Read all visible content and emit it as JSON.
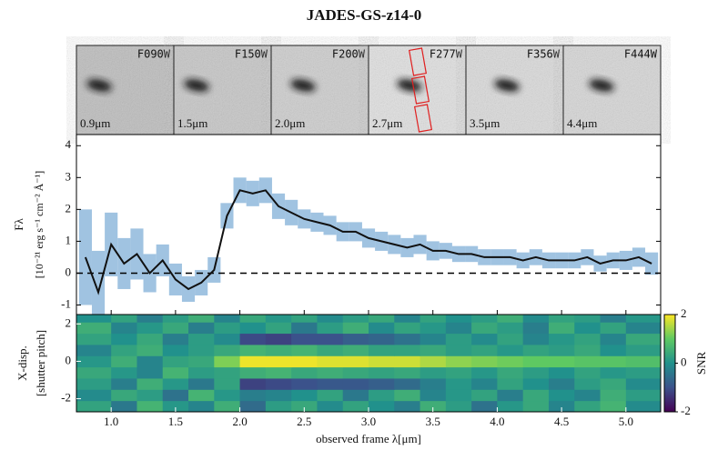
{
  "title": "JADES-GS-z14-0",
  "chart_data": [
    {
      "type": "cutouts",
      "panels": [
        {
          "filter": "F090W",
          "wavelength": "0.9μm"
        },
        {
          "filter": "F150W",
          "wavelength": "1.5μm"
        },
        {
          "filter": "F200W",
          "wavelength": "2.0μm"
        },
        {
          "filter": "F277W",
          "wavelength": "2.7μm"
        },
        {
          "filter": "F356W",
          "wavelength": "3.5μm"
        },
        {
          "filter": "F444W",
          "wavelength": "4.4μm"
        }
      ]
    },
    {
      "type": "line",
      "y_label": [
        "Fλ",
        "[10⁻²¹ erg s⁻¹ cm⁻² Å⁻¹]"
      ],
      "x": [
        0.8,
        0.9,
        1.0,
        1.1,
        1.2,
        1.3,
        1.4,
        1.5,
        1.6,
        1.7,
        1.8,
        1.9,
        2.0,
        2.1,
        2.2,
        2.3,
        2.4,
        2.5,
        2.6,
        2.7,
        2.8,
        2.9,
        3.0,
        3.1,
        3.2,
        3.3,
        3.4,
        3.5,
        3.6,
        3.7,
        3.8,
        3.9,
        4.0,
        4.1,
        4.2,
        4.3,
        4.4,
        4.5,
        4.6,
        4.7,
        4.8,
        4.9,
        5.0,
        5.1,
        5.2
      ],
      "series": [
        {
          "color": "#111111",
          "error_color": "#8fb8dc",
          "values": [
            0.5,
            -0.6,
            0.9,
            0.3,
            0.6,
            0.0,
            0.4,
            -0.2,
            -0.5,
            -0.3,
            0.1,
            1.8,
            2.6,
            2.5,
            2.6,
            2.1,
            1.9,
            1.7,
            1.6,
            1.5,
            1.3,
            1.3,
            1.1,
            1.0,
            0.9,
            0.8,
            0.9,
            0.7,
            0.7,
            0.6,
            0.6,
            0.5,
            0.5,
            0.5,
            0.4,
            0.5,
            0.4,
            0.4,
            0.4,
            0.5,
            0.3,
            0.4,
            0.4,
            0.5,
            0.3
          ],
          "errors": [
            1.5,
            1.3,
            1.0,
            0.8,
            0.8,
            0.6,
            0.5,
            0.5,
            0.4,
            0.4,
            0.4,
            0.4,
            0.4,
            0.4,
            0.4,
            0.4,
            0.4,
            0.3,
            0.3,
            0.3,
            0.3,
            0.3,
            0.3,
            0.3,
            0.3,
            0.3,
            0.3,
            0.3,
            0.25,
            0.25,
            0.25,
            0.25,
            0.25,
            0.25,
            0.25,
            0.25,
            0.25,
            0.25,
            0.25,
            0.25,
            0.25,
            0.25,
            0.3,
            0.3,
            0.35
          ]
        }
      ],
      "hline": 0,
      "xlim": [
        0.73,
        5.27
      ],
      "ylim": [
        -1.3,
        4.35
      ],
      "yticks": [
        -1,
        0,
        1,
        2,
        3,
        4
      ]
    },
    {
      "type": "heatmap",
      "x_label": "observed frame λ[μm]",
      "y_label": [
        "X-disp.",
        "[shutter pitch]"
      ],
      "colorbar_label": "SNR",
      "xlim": [
        0.73,
        5.27
      ],
      "ylim": [
        -2.7,
        2.5
      ],
      "xticks": [
        {
          "value": 1,
          "label": "1.0"
        },
        1.5,
        {
          "value": 2,
          "label": "2.0"
        },
        2.5,
        {
          "value": 3,
          "label": "3.0"
        },
        3.5,
        {
          "value": 4,
          "label": "4.0"
        },
        4.5,
        {
          "value": 5,
          "label": "5.0"
        }
      ],
      "yticks": [
        -2,
        0,
        2
      ],
      "clim": [
        -2,
        2
      ],
      "cticks": [
        -2,
        0,
        2
      ],
      "x_edges": [
        0.73,
        1.0,
        1.2,
        1.4,
        1.6,
        1.8,
        2.0,
        2.2,
        2.4,
        2.6,
        2.8,
        3.0,
        3.2,
        3.4,
        3.6,
        3.8,
        4.0,
        4.2,
        4.4,
        4.6,
        4.8,
        5.0,
        5.27
      ],
      "y_edges": [
        -2.7,
        -2.1,
        -1.5,
        -0.9,
        -0.3,
        0.3,
        0.9,
        1.5,
        2.1,
        2.5
      ],
      "z": [
        [
          0.3,
          -0.4,
          0.6,
          0.1,
          -0.2,
          0.5,
          -0.6,
          0.2,
          0.4,
          -0.1,
          0.3,
          0.0,
          -0.3,
          0.5,
          0.2,
          -0.5,
          0.1,
          0.4,
          -0.2,
          0.3,
          0.6,
          -0.1
        ],
        [
          -0.1,
          0.4,
          0.2,
          -0.5,
          0.6,
          0.1,
          -0.3,
          -0.2,
          0.0,
          0.3,
          -0.4,
          0.2,
          0.5,
          -0.2,
          0.1,
          0.3,
          -0.3,
          0.4,
          0.0,
          -0.2,
          0.5,
          0.2
        ],
        [
          0.2,
          -0.3,
          0.5,
          0.1,
          -0.4,
          0.3,
          -1.2,
          -1.1,
          -1.0,
          -0.9,
          -0.9,
          -0.8,
          -0.6,
          -0.3,
          0.1,
          -0.2,
          0.3,
          0.0,
          -0.3,
          0.2,
          0.4,
          -0.1
        ],
        [
          0.4,
          0.1,
          -0.2,
          0.6,
          0.2,
          0.3,
          0.5,
          0.6,
          0.4,
          0.5,
          0.4,
          0.3,
          0.4,
          0.2,
          0.3,
          0.1,
          0.4,
          0.2,
          0.0,
          0.3,
          0.1,
          0.2
        ],
        [
          0.1,
          0.5,
          -0.2,
          0.3,
          0.4,
          1.2,
          1.9,
          1.9,
          1.9,
          1.8,
          1.8,
          1.7,
          1.7,
          1.5,
          1.3,
          1.2,
          1.1,
          1.0,
          1.0,
          0.9,
          0.9,
          0.8
        ],
        [
          -0.2,
          0.3,
          0.5,
          0.0,
          0.2,
          0.4,
          0.6,
          0.5,
          0.6,
          0.4,
          0.5,
          0.3,
          0.3,
          0.4,
          0.2,
          0.3,
          0.1,
          0.3,
          0.2,
          0.4,
          0.0,
          0.2
        ],
        [
          0.3,
          0.0,
          0.4,
          -0.3,
          0.2,
          -0.1,
          -1.1,
          -1.2,
          -1.0,
          -1.0,
          -0.8,
          -0.7,
          -0.5,
          -0.2,
          0.2,
          -0.1,
          0.3,
          -0.2,
          0.1,
          0.3,
          -0.2,
          0.4
        ],
        [
          0.5,
          -0.2,
          0.1,
          0.4,
          -0.3,
          0.2,
          0.0,
          0.3,
          -0.4,
          0.2,
          0.5,
          -0.1,
          0.3,
          0.1,
          -0.2,
          0.4,
          0.2,
          -0.3,
          0.5,
          0.0,
          0.3,
          -0.2
        ],
        [
          0.0,
          0.3,
          -0.3,
          0.2,
          0.5,
          -0.2,
          0.4,
          0.1,
          0.3,
          -0.1,
          0.2,
          0.4,
          -0.2,
          0.3,
          0.0,
          0.2,
          0.5,
          -0.1,
          0.3,
          0.2,
          -0.3,
          0.1
        ]
      ]
    }
  ]
}
